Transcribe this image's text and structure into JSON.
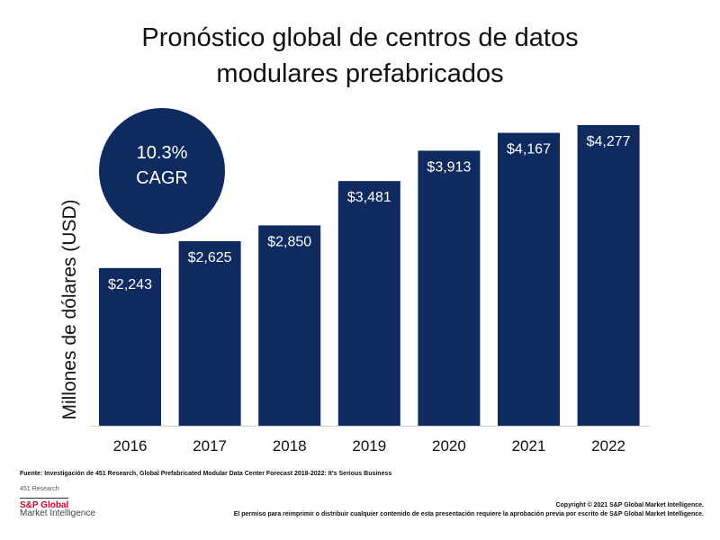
{
  "chart_data": {
    "type": "bar",
    "title": [
      "Pronóstico global de centros de datos",
      "modulares prefabricados"
    ],
    "ylabel": "Millones de dólares (USD)",
    "categories": [
      "2016",
      "2017",
      "2018",
      "2019",
      "2020",
      "2021",
      "2022"
    ],
    "values": [
      2243,
      2625,
      2850,
      3481,
      3913,
      4167,
      4277
    ],
    "data_labels": [
      "$2,243",
      "$2,625",
      "$2,850",
      "$3,481",
      "$3,913",
      "$4,167",
      "$4,277"
    ],
    "ylim": [
      0,
      4277
    ],
    "bar_color": "#0f2a5e",
    "annotation": {
      "value": "10.3%",
      "label": "CAGR"
    }
  },
  "footer": {
    "source": "Fuente: Investigación de 451 Research, Global Prefabricated Modular Data Center Forecast 2018-2022: It's Serious Business",
    "research": "451 Research",
    "logo_line1": "S&P Global",
    "logo_line2": "Market Intelligence",
    "copyright": "Copyright © 2021 S&P Global Market Intelligence.",
    "permission": "El permiso para reimprimir o distribuir cualquier contenido de esta presentación requiere la aprobación previa por escrito de S&P Global Market Intelligence."
  }
}
